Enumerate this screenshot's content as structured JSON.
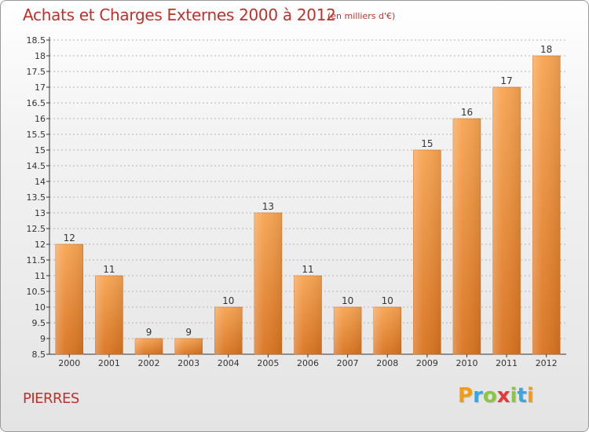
{
  "header": {
    "title": "Achats et Charges Externes 2000 à 2012",
    "subtitle": "(en milliers d'€)"
  },
  "footer": {
    "city": "PIERRES",
    "brand_letters": [
      {
        "ch": "P",
        "color": "#f39c12"
      },
      {
        "ch": "r",
        "color": "#3aa6dd"
      },
      {
        "ch": "o",
        "color": "#8cc63f"
      },
      {
        "ch": "x",
        "color": "#e53935"
      },
      {
        "ch": "i",
        "color": "#8cc63f"
      },
      {
        "ch": "t",
        "color": "#3aa6dd"
      },
      {
        "ch": "i",
        "color": "#f39c12"
      }
    ]
  },
  "chart_data": {
    "type": "bar",
    "title": "Achats et Charges Externes 2000 à 2012",
    "subtitle": "(en milliers d'€)",
    "categories": [
      "2000",
      "2001",
      "2002",
      "2003",
      "2004",
      "2005",
      "2006",
      "2007",
      "2008",
      "2009",
      "2010",
      "2011",
      "2012"
    ],
    "values": [
      12,
      11,
      9,
      9,
      10,
      13,
      11,
      10,
      10,
      15,
      16,
      17,
      18
    ],
    "data_labels": [
      "12",
      "11",
      "9",
      "9",
      "10",
      "13",
      "11",
      "10",
      "10",
      "15",
      "16",
      "17",
      "18"
    ],
    "ylim": [
      8.5,
      18.5
    ],
    "yticks": [
      8.5,
      9,
      9.5,
      10,
      10.5,
      11,
      11.5,
      12,
      12.5,
      13,
      13.5,
      14,
      14.5,
      15,
      15.5,
      16,
      16.5,
      17,
      17.5,
      18,
      18.5
    ],
    "ytick_labels": [
      "8.5",
      "9",
      "9.5",
      "10",
      "10.5",
      "11",
      "11.5",
      "12",
      "12.5",
      "13",
      "13.5",
      "14",
      "14.5",
      "15",
      "15.5",
      "16",
      "16.5",
      "17",
      "17.5",
      "18",
      "18.5"
    ],
    "grid": true,
    "bar_color_top": "#f7a452",
    "bar_color_bottom": "#d9731f"
  }
}
